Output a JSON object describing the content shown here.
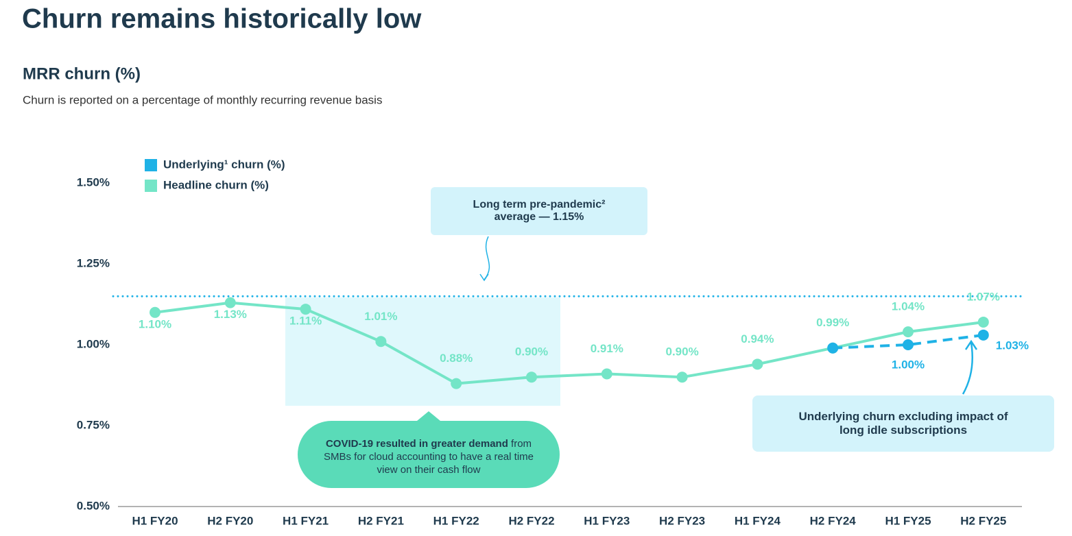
{
  "header": {
    "title": "Churn remains historically low"
  },
  "chart_data": {
    "type": "line",
    "title": "MRR churn (%)",
    "subtitle": "Churn is reported on a percentage of monthly recurring revenue basis",
    "categories": [
      "H1 FY20",
      "H2 FY20",
      "H1 FY21",
      "H2 FY21",
      "H1 FY22",
      "H2 FY22",
      "H1 FY23",
      "H2 FY23",
      "H1 FY24",
      "H2 FY24",
      "H1 FY25",
      "H2 FY25"
    ],
    "series": [
      {
        "name": "Underlying¹ churn (%)",
        "color": "#1fb2e6",
        "dashed": true,
        "values": [
          null,
          null,
          null,
          null,
          null,
          null,
          null,
          null,
          null,
          0.99,
          1.0,
          1.03
        ],
        "value_labels": [
          null,
          null,
          null,
          null,
          null,
          null,
          null,
          null,
          null,
          null,
          "1.00%",
          "1.03%"
        ]
      },
      {
        "name": "Headline churn (%)",
        "color": "#74e5c7",
        "dashed": false,
        "values": [
          1.1,
          1.13,
          1.11,
          1.01,
          0.88,
          0.9,
          0.91,
          0.9,
          0.94,
          0.99,
          1.04,
          1.07
        ],
        "value_labels": [
          "1.10%",
          "1.13%",
          "1.11%",
          "1.01%",
          "0.88%",
          "0.90%",
          "0.91%",
          "0.90%",
          "0.94%",
          "0.99%",
          "1.04%",
          "1.07%"
        ]
      }
    ],
    "ylim": [
      0.5,
      1.5
    ],
    "yticks": [
      {
        "value": 0.5,
        "label": "0.50%"
      },
      {
        "value": 0.75,
        "label": "0.75%"
      },
      {
        "value": 1.0,
        "label": "1.00%"
      },
      {
        "value": 1.25,
        "label": "1.25%"
      },
      {
        "value": 1.5,
        "label": "1.50%"
      }
    ],
    "grid": false,
    "legend": "top-left",
    "reference_line": {
      "value": 1.15,
      "color": "#1fb2e6",
      "label": "Long term pre-pandemic² average — 1.15%"
    },
    "annotations": [
      {
        "bold": "COVID-19 resulted in greater demand",
        "text": "from SMBs for cloud accounting to have a real time view on their cash flow"
      },
      {
        "text": "Underlying churn excluding impact of long idle subscriptions"
      }
    ]
  }
}
